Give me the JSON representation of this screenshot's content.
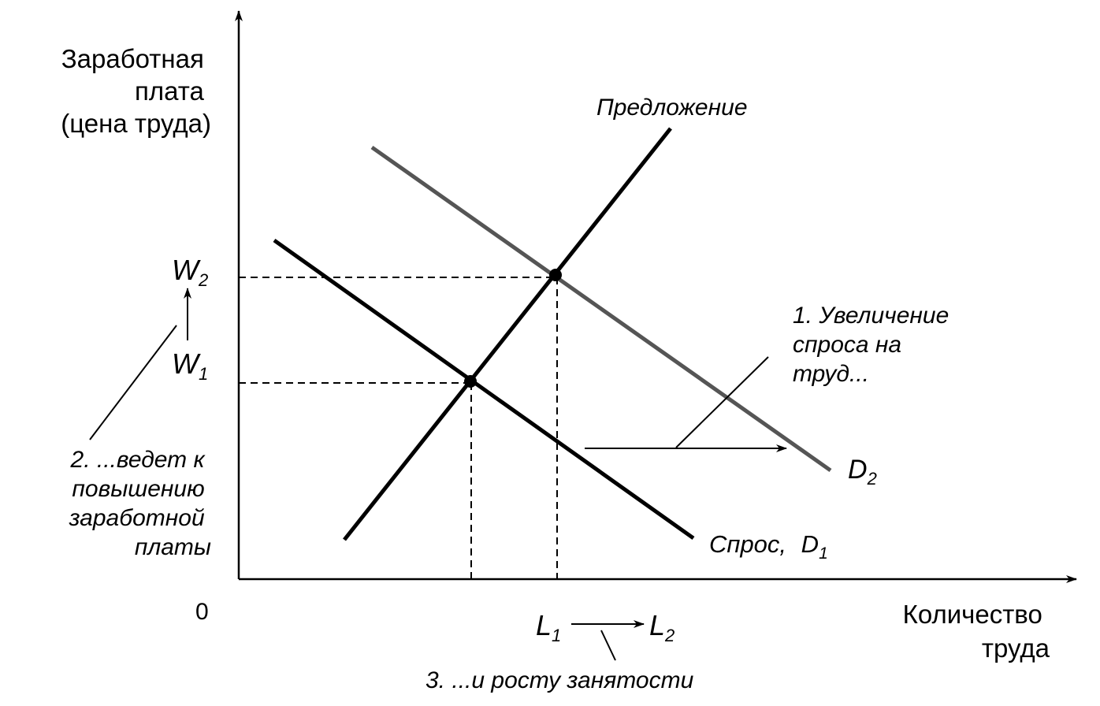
{
  "y_axis_label": [
    "Заработная",
    "плата",
    "(цена труда)"
  ],
  "x_axis_label": [
    "Количество",
    "труда"
  ],
  "origin_label": "0",
  "curves": {
    "supply": "Предложение",
    "demand1": "Спрос,",
    "demand1_symbol": "D",
    "demand1_sub": "1",
    "demand2_symbol": "D",
    "demand2_sub": "2"
  },
  "wages": {
    "w2_symbol": "W",
    "w2_sub": "2",
    "w1_symbol": "W",
    "w1_sub": "1"
  },
  "labor": {
    "l1_symbol": "L",
    "l1_sub": "1",
    "l2_symbol": "L",
    "l2_sub": "2"
  },
  "annotations": {
    "note1": [
      "1. Увеличение",
      "спроса на",
      "труд..."
    ],
    "note2": [
      "2. ...ведет к",
      "повышению",
      "заработной",
      "платы"
    ],
    "note3": "3. ...и росту занятости"
  },
  "colors": {
    "ink": "#000000",
    "d2_line": "#555555"
  }
}
